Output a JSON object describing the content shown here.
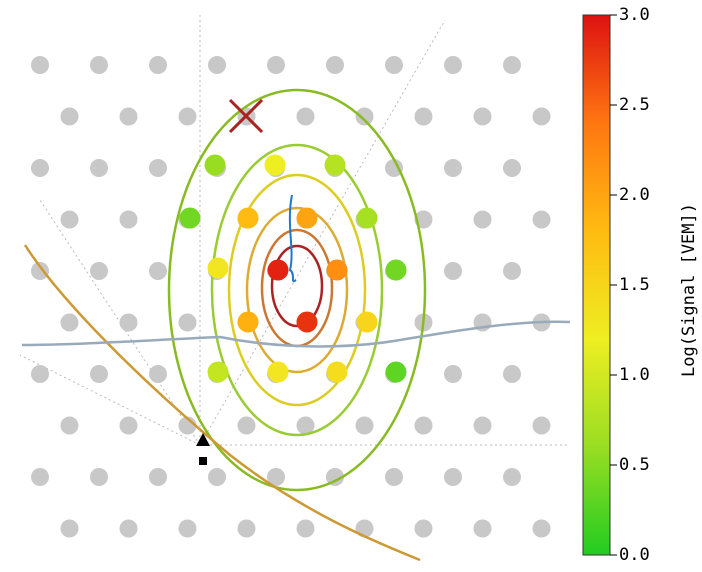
{
  "chart_data": {
    "type": "scatter",
    "title": "",
    "colorbar": {
      "label": "Log(Signal [VEM])",
      "min": 0.0,
      "max": 3.0,
      "ticks": [
        "0.0",
        "0.5",
        "1.0",
        "1.5",
        "2.0",
        "2.5",
        "3.0"
      ],
      "colormap": [
        "#22cc22",
        "#99dd22",
        "#eeee22",
        "#ffbb11",
        "#ff7711",
        "#dd1111"
      ]
    },
    "grid": false,
    "background_dot_color": "#c8c8c8",
    "triggered_stations": [
      {
        "label": "",
        "log_signal": 0.6
      },
      {
        "label": "",
        "log_signal": 1.2
      },
      {
        "label": "",
        "log_signal": 0.8
      },
      {
        "label": "",
        "log_signal": 0.4
      },
      {
        "label": "",
        "log_signal": 1.8
      },
      {
        "label": "",
        "log_signal": 2.0
      },
      {
        "label": "",
        "log_signal": 0.7
      },
      {
        "label": "",
        "log_signal": 1.3
      },
      {
        "label": "",
        "log_signal": 2.9
      },
      {
        "label": "",
        "log_signal": 2.2
      },
      {
        "label": "",
        "log_signal": 0.4
      },
      {
        "label": "",
        "log_signal": 1.9
      },
      {
        "label": "",
        "log_signal": 2.8
      },
      {
        "label": "",
        "log_signal": 1.5
      },
      {
        "label": "",
        "log_signal": 0.9
      },
      {
        "label": "",
        "log_signal": 1.3
      },
      {
        "label": "",
        "log_signal": 1.4
      },
      {
        "label": "",
        "log_signal": 0.3
      }
    ],
    "contour_levels": [
      0.5,
      1.0,
      1.5,
      2.0,
      2.5,
      3.0
    ],
    "markers": [
      "x-marker",
      "triangle-marker",
      "square-marker"
    ]
  }
}
